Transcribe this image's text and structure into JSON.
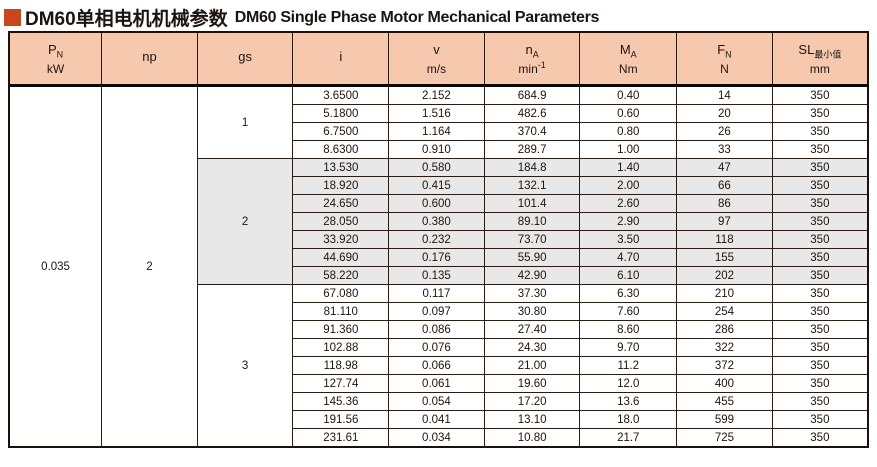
{
  "title": {
    "zh": "DM60单相电机机械参数",
    "en": "DM60 Single Phase Motor Mechanical Parameters"
  },
  "colors": {
    "accent": "#c9471e",
    "header_bg": "#f6c9ae",
    "shaded_row_bg": "#e8e8e8",
    "border": "#1d1006"
  },
  "table": {
    "columns": [
      {
        "sym": "P",
        "sub": "N",
        "unit": "kW"
      },
      {
        "sym": "np",
        "unit": ""
      },
      {
        "sym": "gs",
        "unit": ""
      },
      {
        "sym": "i",
        "unit": ""
      },
      {
        "sym": "v",
        "unit": "m/s"
      },
      {
        "sym": "n",
        "sub": "A",
        "unit": "min",
        "unit_sup": "-1"
      },
      {
        "sym": "M",
        "sub": "A",
        "unit": "Nm"
      },
      {
        "sym": "F",
        "sub": "N",
        "unit": "N"
      },
      {
        "sym": "SL",
        "sub": "最小值",
        "unit": "mm"
      }
    ],
    "pn_value": "0.035",
    "np_value": "2",
    "groups": [
      {
        "gs": "1",
        "shaded": false,
        "rows": [
          [
            "3.6500",
            "2.152",
            "684.9",
            "0.40",
            "14",
            "350"
          ],
          [
            "5.1800",
            "1.516",
            "482.6",
            "0.60",
            "20",
            "350"
          ],
          [
            "6.7500",
            "1.164",
            "370.4",
            "0.80",
            "26",
            "350"
          ],
          [
            "8.6300",
            "0.910",
            "289.7",
            "1.00",
            "33",
            "350"
          ]
        ]
      },
      {
        "gs": "2",
        "shaded": true,
        "rows": [
          [
            "13.530",
            "0.580",
            "184.8",
            "1.40",
            "47",
            "350"
          ],
          [
            "18.920",
            "0.415",
            "132.1",
            "2.00",
            "66",
            "350"
          ],
          [
            "24.650",
            "0.600",
            "101.4",
            "2.60",
            "86",
            "350"
          ],
          [
            "28.050",
            "0.380",
            "89.10",
            "2.90",
            "97",
            "350"
          ],
          [
            "33.920",
            "0.232",
            "73.70",
            "3.50",
            "118",
            "350"
          ],
          [
            "44.690",
            "0.176",
            "55.90",
            "4.70",
            "155",
            "350"
          ],
          [
            "58.220",
            "0.135",
            "42.90",
            "6.10",
            "202",
            "350"
          ]
        ]
      },
      {
        "gs": "3",
        "shaded": false,
        "rows": [
          [
            "67.080",
            "0.117",
            "37.30",
            "6.30",
            "210",
            "350"
          ],
          [
            "81.110",
            "0.097",
            "30.80",
            "7.60",
            "254",
            "350"
          ],
          [
            "91.360",
            "0.086",
            "27.40",
            "8.60",
            "286",
            "350"
          ],
          [
            "102.88",
            "0.076",
            "24.30",
            "9.70",
            "322",
            "350"
          ],
          [
            "118.98",
            "0.066",
            "21.00",
            "11.2",
            "372",
            "350"
          ],
          [
            "127.74",
            "0.061",
            "19.60",
            "12.0",
            "400",
            "350"
          ],
          [
            "145.36",
            "0.054",
            "17.20",
            "13.6",
            "455",
            "350"
          ],
          [
            "191.56",
            "0.041",
            "13.10",
            "18.0",
            "599",
            "350"
          ],
          [
            "231.61",
            "0.034",
            "10.80",
            "21.7",
            "725",
            "350"
          ]
        ]
      }
    ]
  }
}
